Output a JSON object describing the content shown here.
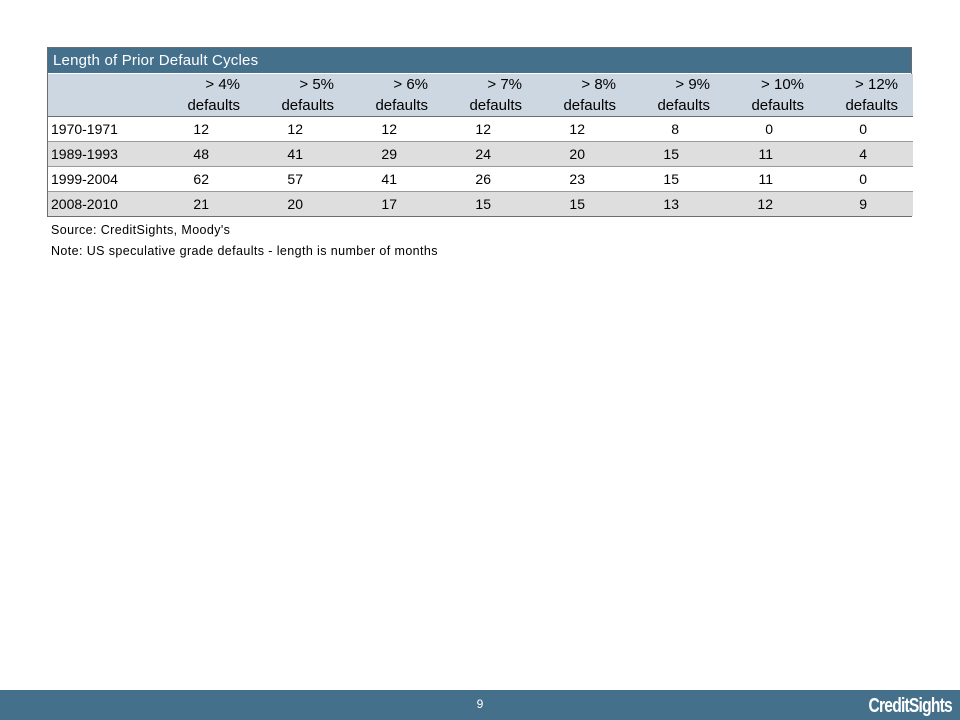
{
  "table": {
    "title": "Length of Prior Default Cycles",
    "header_top": [
      "> 4%",
      "> 5%",
      "> 6%",
      "> 7%",
      "> 8%",
      "> 9%",
      "> 10%",
      "> 12%"
    ],
    "header_bottom": [
      "defaults",
      "defaults",
      "defaults",
      "defaults",
      "defaults",
      "defaults",
      "defaults",
      "defaults"
    ],
    "rows": [
      {
        "period": "1970-1971",
        "values": [
          "12",
          "12",
          "12",
          "12",
          "12",
          "8",
          "0",
          "0"
        ]
      },
      {
        "period": "1989-1993",
        "values": [
          "48",
          "41",
          "29",
          "24",
          "20",
          "15",
          "11",
          "4"
        ]
      },
      {
        "period": "1999-2004",
        "values": [
          "62",
          "57",
          "41",
          "26",
          "23",
          "15",
          "11",
          "0"
        ]
      },
      {
        "period": "2008-2010",
        "values": [
          "21",
          "20",
          "17",
          "15",
          "15",
          "13",
          "12",
          "9"
        ]
      }
    ]
  },
  "notes": {
    "source": "Source: CreditSights, Moody's",
    "note": "Note: US speculative grade defaults - length is number of months"
  },
  "footer": {
    "page_number": "9",
    "logo_text": "CreditSights"
  },
  "colors": {
    "accent": "#44708c",
    "header_bg": "#cdd7e1",
    "row_alt_bg": "#dedede"
  }
}
